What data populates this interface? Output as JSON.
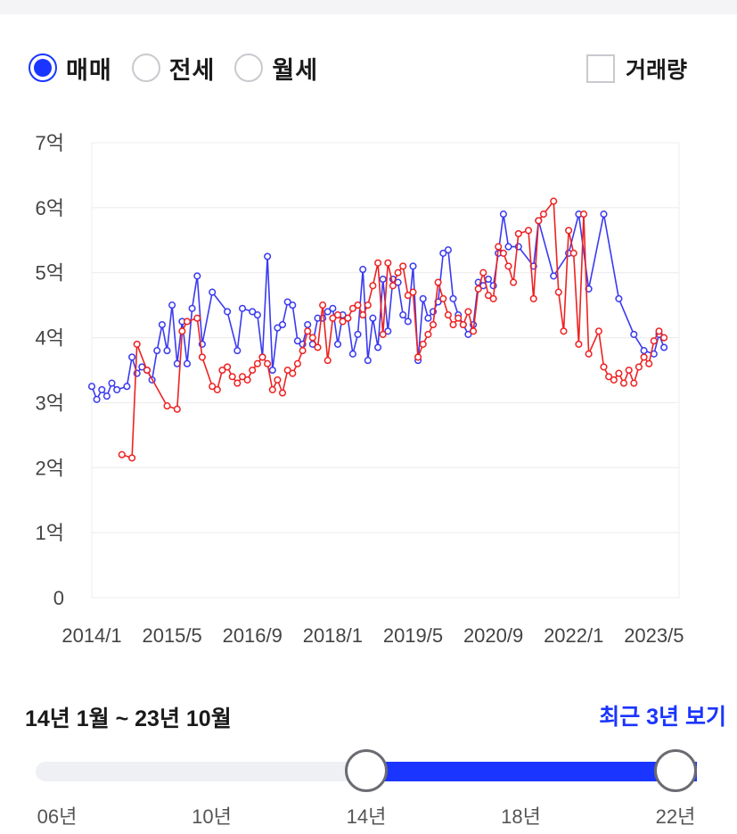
{
  "tabs": [
    {
      "label": "매매",
      "selected": true
    },
    {
      "label": "전세",
      "selected": false
    },
    {
      "label": "월세",
      "selected": false
    }
  ],
  "volume_toggle": {
    "label": "거래량",
    "checked": false
  },
  "colors": {
    "accent": "#1a35ff",
    "sale": "#3a3af0",
    "jeonse": "#ee2222",
    "grid": "#ececec"
  },
  "chart_data": {
    "type": "line",
    "title": "",
    "xlabel": "",
    "ylabel": "",
    "ylim": [
      0,
      7
    ],
    "y_ticks": [
      0,
      1,
      2,
      3,
      4,
      5,
      6,
      7
    ],
    "y_tick_labels": [
      "0",
      "1억",
      "2억",
      "3억",
      "4억",
      "5억",
      "6억",
      "7억"
    ],
    "x_start": "2014-01",
    "x_end": "2023-10",
    "x_tick_labels": [
      {
        "date": "2014-01",
        "label": "2014/1"
      },
      {
        "date": "2015-05",
        "label": "2015/5"
      },
      {
        "date": "2016-09",
        "label": "2016/9"
      },
      {
        "date": "2018-01",
        "label": "2018/1"
      },
      {
        "date": "2019-05",
        "label": "2019/5"
      },
      {
        "date": "2020-09",
        "label": "2020/9"
      },
      {
        "date": "2022-01",
        "label": "2022/1"
      },
      {
        "date": "2023-05",
        "label": "2023/5"
      }
    ],
    "grid": true,
    "series": [
      {
        "key": "sale",
        "color": "#3a3af0",
        "points": [
          [
            "2014-01",
            3.25
          ],
          [
            "2014-02",
            3.05
          ],
          [
            "2014-03",
            3.2
          ],
          [
            "2014-04",
            3.1
          ],
          [
            "2014-05",
            3.3
          ],
          [
            "2014-06",
            3.2
          ],
          [
            "2014-08",
            3.25
          ],
          [
            "2014-09",
            3.7
          ],
          [
            "2014-10",
            3.45
          ],
          [
            "2014-11",
            3.55
          ],
          [
            "2014-12",
            3.5
          ],
          [
            "2015-01",
            3.35
          ],
          [
            "2015-02",
            3.8
          ],
          [
            "2015-03",
            4.2
          ],
          [
            "2015-04",
            3.8
          ],
          [
            "2015-05",
            4.5
          ],
          [
            "2015-06",
            3.6
          ],
          [
            "2015-07",
            4.25
          ],
          [
            "2015-08",
            3.6
          ],
          [
            "2015-09",
            4.45
          ],
          [
            "2015-10",
            4.95
          ],
          [
            "2015-11",
            3.9
          ],
          [
            "2016-01",
            4.7
          ],
          [
            "2016-04",
            4.4
          ],
          [
            "2016-06",
            3.8
          ],
          [
            "2016-07",
            4.45
          ],
          [
            "2016-09",
            4.4
          ],
          [
            "2016-10",
            4.35
          ],
          [
            "2016-11",
            3.7
          ],
          [
            "2016-12",
            5.25
          ],
          [
            "2017-01",
            3.5
          ],
          [
            "2017-02",
            4.15
          ],
          [
            "2017-03",
            4.2
          ],
          [
            "2017-04",
            4.55
          ],
          [
            "2017-05",
            4.5
          ],
          [
            "2017-06",
            3.95
          ],
          [
            "2017-07",
            3.9
          ],
          [
            "2017-08",
            4.2
          ],
          [
            "2017-09",
            3.9
          ],
          [
            "2017-10",
            4.3
          ],
          [
            "2017-11",
            4.3
          ],
          [
            "2017-12",
            4.4
          ],
          [
            "2018-01",
            4.45
          ],
          [
            "2018-02",
            3.9
          ],
          [
            "2018-03",
            4.35
          ],
          [
            "2018-04",
            4.3
          ],
          [
            "2018-05",
            3.75
          ],
          [
            "2018-06",
            4.05
          ],
          [
            "2018-07",
            5.05
          ],
          [
            "2018-08",
            3.65
          ],
          [
            "2018-09",
            4.3
          ],
          [
            "2018-10",
            3.85
          ],
          [
            "2018-11",
            4.9
          ],
          [
            "2018-12",
            4.1
          ],
          [
            "2019-01",
            4.9
          ],
          [
            "2019-02",
            4.85
          ],
          [
            "2019-03",
            4.35
          ],
          [
            "2019-04",
            4.25
          ],
          [
            "2019-05",
            5.1
          ],
          [
            "2019-06",
            3.65
          ],
          [
            "2019-07",
            4.6
          ],
          [
            "2019-08",
            4.3
          ],
          [
            "2019-09",
            4.4
          ],
          [
            "2019-10",
            4.55
          ],
          [
            "2019-11",
            5.3
          ],
          [
            "2019-12",
            5.35
          ],
          [
            "2020-01",
            4.6
          ],
          [
            "2020-02",
            4.35
          ],
          [
            "2020-03",
            4.2
          ],
          [
            "2020-04",
            4.05
          ],
          [
            "2020-05",
            4.2
          ],
          [
            "2020-06",
            4.85
          ],
          [
            "2020-07",
            4.8
          ],
          [
            "2020-08",
            4.9
          ],
          [
            "2020-09",
            4.8
          ],
          [
            "2020-10",
            5.3
          ],
          [
            "2020-11",
            5.9
          ],
          [
            "2020-12",
            5.4
          ],
          [
            "2021-02",
            5.4
          ],
          [
            "2021-05",
            5.1
          ],
          [
            "2021-06",
            5.8
          ],
          [
            "2021-09",
            4.95
          ],
          [
            "2021-12",
            5.3
          ],
          [
            "2022-02",
            5.9
          ],
          [
            "2022-04",
            4.75
          ],
          [
            "2022-07",
            5.9
          ],
          [
            "2022-10",
            4.6
          ],
          [
            "2023-01",
            4.05
          ],
          [
            "2023-03",
            3.8
          ],
          [
            "2023-05",
            3.75
          ],
          [
            "2023-06",
            4.05
          ],
          [
            "2023-07",
            3.85
          ]
        ]
      },
      {
        "key": "jeonse",
        "color": "#ee2222",
        "points": [
          [
            "2014-07",
            2.2
          ],
          [
            "2014-09",
            2.15
          ],
          [
            "2014-10",
            3.9
          ],
          [
            "2014-12",
            3.5
          ],
          [
            "2015-04",
            2.95
          ],
          [
            "2015-06",
            2.9
          ],
          [
            "2015-07",
            4.1
          ],
          [
            "2015-08",
            4.25
          ],
          [
            "2015-10",
            4.3
          ],
          [
            "2015-11",
            3.7
          ],
          [
            "2016-01",
            3.25
          ],
          [
            "2016-02",
            3.2
          ],
          [
            "2016-03",
            3.5
          ],
          [
            "2016-04",
            3.55
          ],
          [
            "2016-05",
            3.4
          ],
          [
            "2016-06",
            3.3
          ],
          [
            "2016-07",
            3.4
          ],
          [
            "2016-08",
            3.35
          ],
          [
            "2016-09",
            3.5
          ],
          [
            "2016-10",
            3.6
          ],
          [
            "2016-11",
            3.7
          ],
          [
            "2016-12",
            3.6
          ],
          [
            "2017-01",
            3.2
          ],
          [
            "2017-02",
            3.35
          ],
          [
            "2017-03",
            3.15
          ],
          [
            "2017-04",
            3.5
          ],
          [
            "2017-05",
            3.45
          ],
          [
            "2017-06",
            3.6
          ],
          [
            "2017-07",
            3.8
          ],
          [
            "2017-08",
            4.1
          ],
          [
            "2017-09",
            4.0
          ],
          [
            "2017-10",
            3.85
          ],
          [
            "2017-11",
            4.5
          ],
          [
            "2017-12",
            3.65
          ],
          [
            "2018-01",
            4.3
          ],
          [
            "2018-02",
            4.35
          ],
          [
            "2018-03",
            4.25
          ],
          [
            "2018-04",
            4.3
          ],
          [
            "2018-05",
            4.45
          ],
          [
            "2018-06",
            4.5
          ],
          [
            "2018-07",
            4.35
          ],
          [
            "2018-08",
            4.5
          ],
          [
            "2018-09",
            4.8
          ],
          [
            "2018-10",
            5.15
          ],
          [
            "2018-11",
            4.05
          ],
          [
            "2018-12",
            5.15
          ],
          [
            "2019-01",
            4.8
          ],
          [
            "2019-02",
            5.0
          ],
          [
            "2019-03",
            5.1
          ],
          [
            "2019-04",
            4.65
          ],
          [
            "2019-05",
            4.7
          ],
          [
            "2019-06",
            3.7
          ],
          [
            "2019-07",
            3.9
          ],
          [
            "2019-08",
            4.05
          ],
          [
            "2019-09",
            4.2
          ],
          [
            "2019-10",
            4.85
          ],
          [
            "2019-11",
            4.6
          ],
          [
            "2019-12",
            4.35
          ],
          [
            "2020-01",
            4.2
          ],
          [
            "2020-02",
            4.3
          ],
          [
            "2020-03",
            4.2
          ],
          [
            "2020-04",
            4.4
          ],
          [
            "2020-05",
            4.1
          ],
          [
            "2020-06",
            4.75
          ],
          [
            "2020-07",
            5.0
          ],
          [
            "2020-08",
            4.65
          ],
          [
            "2020-09",
            4.6
          ],
          [
            "2020-10",
            5.4
          ],
          [
            "2020-11",
            5.3
          ],
          [
            "2020-12",
            5.1
          ],
          [
            "2021-01",
            4.85
          ],
          [
            "2021-02",
            5.6
          ],
          [
            "2021-04",
            5.65
          ],
          [
            "2021-05",
            4.6
          ],
          [
            "2021-06",
            5.8
          ],
          [
            "2021-07",
            5.9
          ],
          [
            "2021-09",
            6.1
          ],
          [
            "2021-10",
            4.7
          ],
          [
            "2021-11",
            4.1
          ],
          [
            "2021-12",
            5.65
          ],
          [
            "2022-01",
            5.3
          ],
          [
            "2022-02",
            3.9
          ],
          [
            "2022-03",
            5.9
          ],
          [
            "2022-04",
            3.75
          ],
          [
            "2022-06",
            4.1
          ],
          [
            "2022-07",
            3.55
          ],
          [
            "2022-08",
            3.4
          ],
          [
            "2022-09",
            3.35
          ],
          [
            "2022-10",
            3.45
          ],
          [
            "2022-11",
            3.3
          ],
          [
            "2022-12",
            3.5
          ],
          [
            "2023-01",
            3.3
          ],
          [
            "2023-02",
            3.55
          ],
          [
            "2023-03",
            3.7
          ],
          [
            "2023-04",
            3.6
          ],
          [
            "2023-05",
            3.95
          ],
          [
            "2023-06",
            4.1
          ],
          [
            "2023-07",
            4.0
          ]
        ]
      }
    ]
  },
  "range": {
    "label": "14년 1월 ~ 23년 10월",
    "start": "2014-01",
    "end": "2023-10"
  },
  "recent_link": "최근 3년 보기",
  "slider": {
    "min_year": 2006,
    "max_year": 2022,
    "low_year": 2014,
    "high_year": 2022,
    "ticks": [
      {
        "year": 2006,
        "label": "06년"
      },
      {
        "year": 2010,
        "label": "10년"
      },
      {
        "year": 2014,
        "label": "14년"
      },
      {
        "year": 2018,
        "label": "18년"
      },
      {
        "year": 2022,
        "label": "22년"
      }
    ]
  }
}
